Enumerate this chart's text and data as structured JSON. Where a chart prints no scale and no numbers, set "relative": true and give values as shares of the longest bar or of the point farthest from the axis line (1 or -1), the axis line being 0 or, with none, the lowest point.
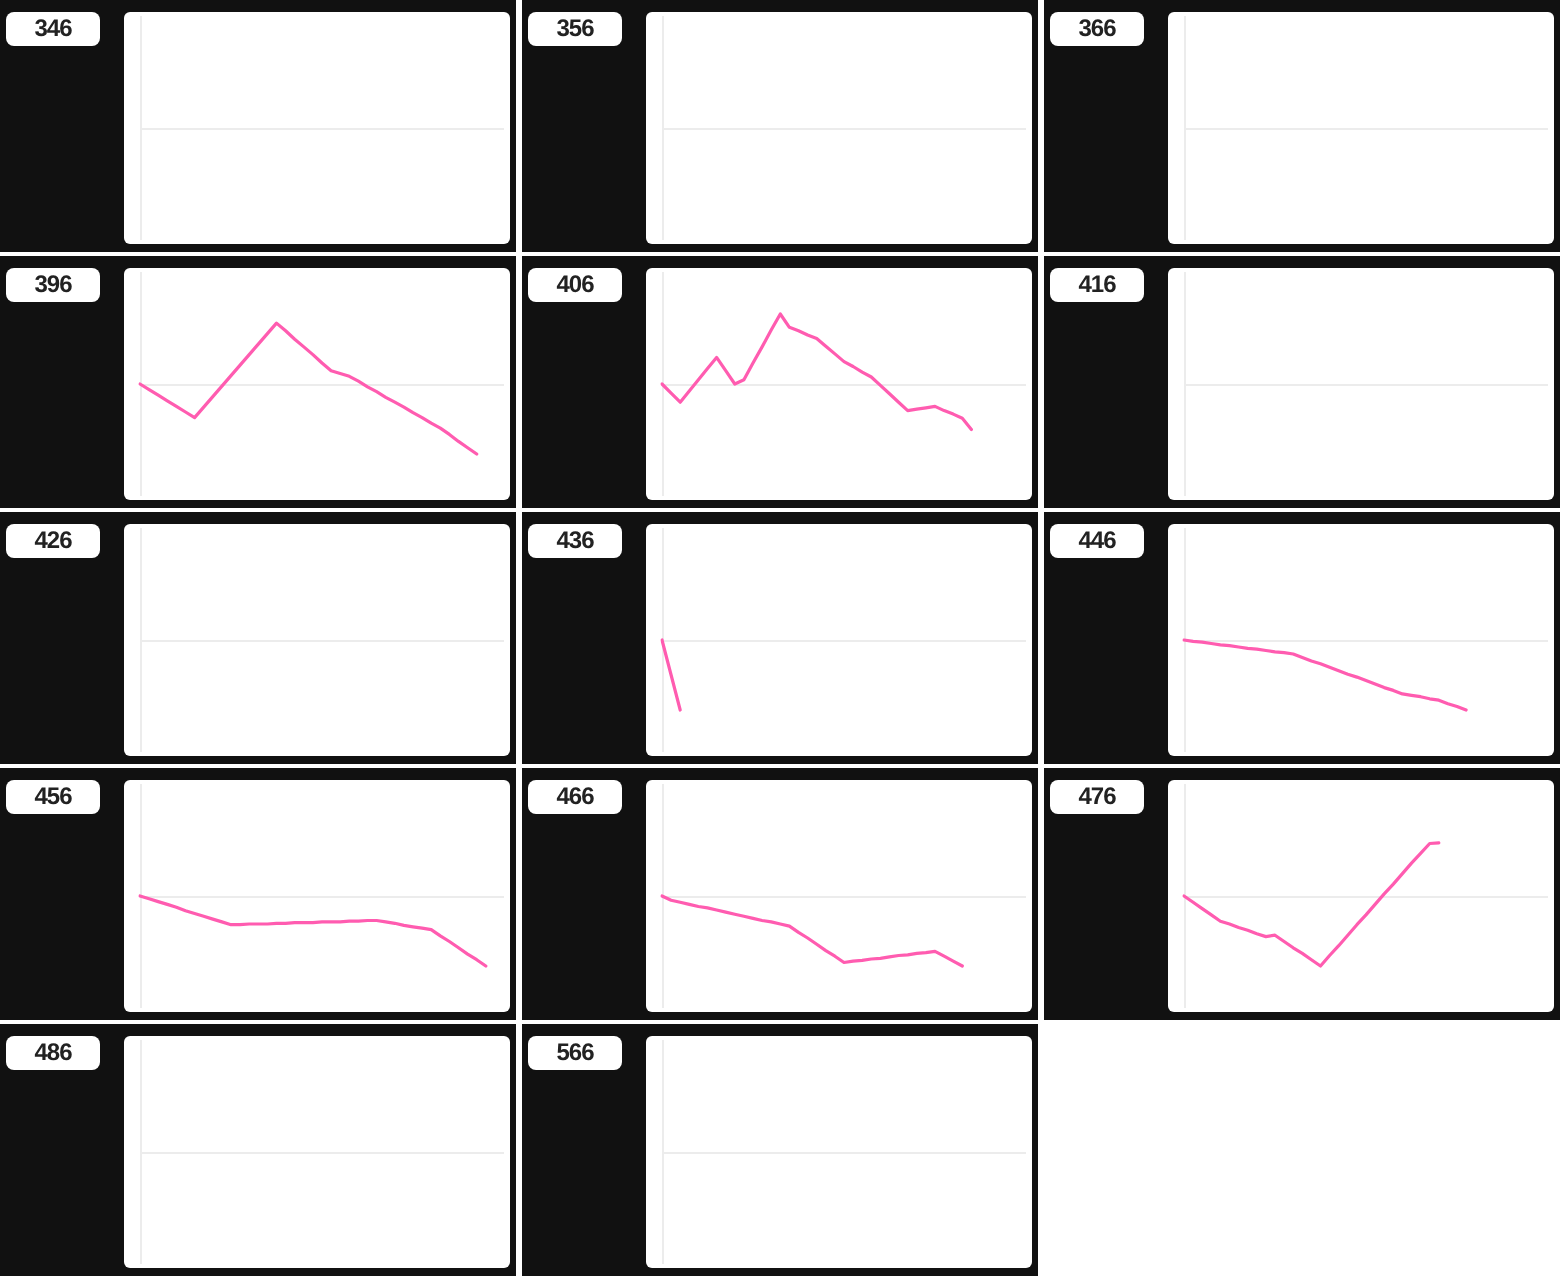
{
  "chart_data": [
    {
      "type": "other",
      "title": "346"
    },
    {
      "type": "other",
      "title": "356"
    },
    {
      "type": "other",
      "title": "366"
    },
    {
      "type": "line",
      "title": "396",
      "relative": true,
      "color": "#ff5cb0",
      "categories": [
        null,
        null,
        null,
        null,
        null,
        null,
        null,
        null,
        null,
        null,
        null,
        null,
        null,
        null,
        null,
        null,
        null,
        null,
        null,
        null,
        null,
        null,
        null,
        null,
        null,
        null,
        null,
        null,
        null,
        null,
        null,
        null,
        null,
        null,
        null,
        null,
        null,
        null,
        null,
        null,
        null
      ],
      "values": [
        0,
        -0.08,
        -0.16,
        -0.24,
        -0.32,
        -0.4,
        -0.48,
        -0.33,
        -0.18,
        -0.03,
        0.12,
        0.27,
        0.42,
        0.57,
        0.72,
        0.87,
        0.76,
        0.64,
        0.53,
        0.42,
        0.3,
        0.19,
        0.15,
        0.11,
        0.04,
        -0.04,
        -0.11,
        -0.19,
        -0.26,
        -0.33,
        -0.41,
        -0.48,
        -0.56,
        -0.63,
        -0.72,
        -0.82,
        -0.91,
        -1,
        null,
        null,
        null
      ]
    },
    {
      "type": "line",
      "title": "406",
      "relative": true,
      "color": "#ff5cb0",
      "categories": [
        null,
        null,
        null,
        null,
        null,
        null,
        null,
        null,
        null,
        null,
        null,
        null,
        null,
        null,
        null,
        null,
        null,
        null,
        null,
        null,
        null,
        null,
        null,
        null,
        null,
        null,
        null,
        null,
        null,
        null,
        null,
        null,
        null,
        null,
        null,
        null,
        null,
        null,
        null,
        null,
        null
      ],
      "values": [
        0,
        -0.13,
        -0.26,
        -0.1,
        0.06,
        0.22,
        0.38,
        0.19,
        0,
        0.06,
        0.3,
        0.53,
        0.77,
        1,
        0.81,
        0.76,
        0.7,
        0.65,
        0.54,
        0.43,
        0.32,
        0.25,
        0.17,
        0.1,
        -0.02,
        -0.14,
        -0.26,
        -0.38,
        -0.36,
        -0.34,
        -0.32,
        -0.38,
        -0.43,
        -0.49,
        -0.65,
        null,
        null,
        null,
        null,
        null,
        null
      ]
    },
    {
      "type": "other",
      "title": "416"
    },
    {
      "type": "other",
      "title": "426"
    },
    {
      "type": "line",
      "title": "436",
      "relative": true,
      "color": "#ff5cb0",
      "categories": [
        null,
        null,
        null,
        null,
        null,
        null,
        null,
        null,
        null,
        null,
        null,
        null,
        null,
        null,
        null,
        null,
        null,
        null,
        null,
        null,
        null,
        null,
        null,
        null,
        null,
        null,
        null,
        null,
        null,
        null,
        null,
        null,
        null,
        null,
        null,
        null,
        null,
        null,
        null,
        null,
        null
      ],
      "values": [
        0,
        -0.5,
        -1,
        null,
        null,
        null,
        null,
        null,
        null,
        null,
        null,
        null,
        null,
        null,
        null,
        null,
        null,
        null,
        null,
        null,
        null,
        null,
        null,
        null,
        null,
        null,
        null,
        null,
        null,
        null,
        null,
        null,
        null,
        null,
        null,
        null,
        null,
        null,
        null,
        null,
        null
      ]
    },
    {
      "type": "line",
      "title": "446",
      "relative": true,
      "color": "#ff5cb0",
      "categories": [
        null,
        null,
        null,
        null,
        null,
        null,
        null,
        null,
        null,
        null,
        null,
        null,
        null,
        null,
        null,
        null,
        null,
        null,
        null,
        null,
        null,
        null,
        null,
        null,
        null,
        null,
        null,
        null,
        null,
        null,
        null,
        null,
        null,
        null,
        null,
        null,
        null,
        null,
        null,
        null,
        null
      ],
      "values": [
        0,
        -0.02,
        -0.03,
        -0.05,
        -0.07,
        -0.08,
        -0.1,
        -0.12,
        -0.13,
        -0.15,
        -0.17,
        -0.18,
        -0.2,
        -0.25,
        -0.3,
        -0.34,
        -0.39,
        -0.44,
        -0.49,
        -0.53,
        -0.58,
        -0.63,
        -0.68,
        -0.72,
        -0.77,
        -0.79,
        -0.81,
        -0.84,
        -0.86,
        -0.91,
        -0.95,
        -1,
        null,
        null,
        null,
        null,
        null,
        null,
        null,
        null,
        null
      ]
    },
    {
      "type": "line",
      "title": "456",
      "relative": true,
      "color": "#ff5cb0",
      "categories": [
        null,
        null,
        null,
        null,
        null,
        null,
        null,
        null,
        null,
        null,
        null,
        null,
        null,
        null,
        null,
        null,
        null,
        null,
        null,
        null,
        null,
        null,
        null,
        null,
        null,
        null,
        null,
        null,
        null,
        null,
        null,
        null,
        null,
        null,
        null,
        null,
        null,
        null,
        null,
        null,
        null
      ],
      "values": [
        0,
        -0.04,
        -0.08,
        -0.12,
        -0.16,
        -0.21,
        -0.25,
        -0.29,
        -0.33,
        -0.37,
        -0.41,
        -0.41,
        -0.4,
        -0.4,
        -0.4,
        -0.39,
        -0.39,
        -0.38,
        -0.38,
        -0.38,
        -0.37,
        -0.37,
        -0.37,
        -0.36,
        -0.36,
        -0.35,
        -0.35,
        -0.37,
        -0.39,
        -0.42,
        -0.44,
        -0.46,
        -0.48,
        -0.57,
        -0.65,
        -0.74,
        -0.83,
        -0.91,
        -1,
        null,
        null
      ]
    },
    {
      "type": "line",
      "title": "466",
      "relative": true,
      "color": "#ff5cb0",
      "categories": [
        null,
        null,
        null,
        null,
        null,
        null,
        null,
        null,
        null,
        null,
        null,
        null,
        null,
        null,
        null,
        null,
        null,
        null,
        null,
        null,
        null,
        null,
        null,
        null,
        null,
        null,
        null,
        null,
        null,
        null,
        null,
        null,
        null,
        null,
        null,
        null,
        null,
        null,
        null,
        null,
        null
      ],
      "values": [
        0,
        -0.06,
        -0.09,
        -0.12,
        -0.15,
        -0.17,
        -0.2,
        -0.23,
        -0.26,
        -0.29,
        -0.32,
        -0.35,
        -0.37,
        -0.4,
        -0.43,
        -0.52,
        -0.6,
        -0.69,
        -0.78,
        -0.86,
        -0.95,
        -0.93,
        -0.92,
        -0.9,
        -0.89,
        -0.87,
        -0.85,
        -0.84,
        -0.82,
        -0.81,
        -0.79,
        -0.86,
        -0.93,
        -1,
        null,
        null,
        null,
        null,
        null,
        null,
        null
      ]
    },
    {
      "type": "line",
      "title": "476",
      "relative": true,
      "color": "#ff5cb0",
      "categories": [
        null,
        null,
        null,
        null,
        null,
        null,
        null,
        null,
        null,
        null,
        null,
        null,
        null,
        null,
        null,
        null,
        null,
        null,
        null,
        null,
        null,
        null,
        null,
        null,
        null,
        null,
        null,
        null,
        null,
        null,
        null,
        null,
        null,
        null,
        null,
        null,
        null,
        null,
        null,
        null,
        null
      ],
      "values": [
        0,
        -0.09,
        -0.18,
        -0.27,
        -0.36,
        -0.4,
        -0.45,
        -0.49,
        -0.54,
        -0.58,
        -0.56,
        -0.65,
        -0.74,
        -0.82,
        -0.91,
        -1,
        -0.85,
        -0.71,
        -0.56,
        -0.41,
        -0.27,
        -0.12,
        0.03,
        0.17,
        0.32,
        0.47,
        0.61,
        0.75,
        0.76,
        null,
        null,
        null,
        null,
        null,
        null,
        null,
        null,
        null,
        null,
        null,
        null
      ]
    },
    {
      "type": "other",
      "title": "486"
    },
    {
      "type": "other",
      "title": "566"
    }
  ]
}
